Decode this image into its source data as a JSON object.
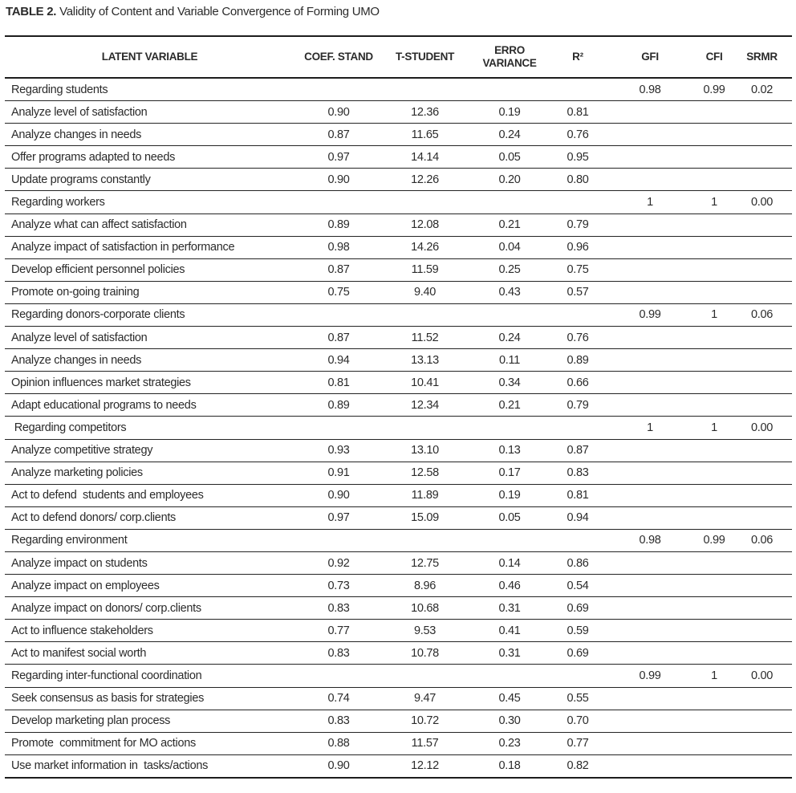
{
  "colors": {
    "text": "#2b2b2b",
    "rule": "#1d1d1d",
    "background": "#ffffff"
  },
  "title": {
    "label": "TABLE 2.",
    "text": "Validity of Content and Variable Convergence of Forming UMO"
  },
  "table": {
    "columns": [
      {
        "key": "label",
        "label": "LATENT VARIABLE"
      },
      {
        "key": "coef",
        "label": "COEF. STAND"
      },
      {
        "key": "t",
        "label": "T-STUDENT"
      },
      {
        "key": "erro",
        "label": "ERRO\nVARIANCE"
      },
      {
        "key": "r2",
        "label": "R²"
      },
      {
        "key": "gfi",
        "label": "GFI"
      },
      {
        "key": "cfi",
        "label": "CFI"
      },
      {
        "key": "srmr",
        "label": "SRMR"
      }
    ],
    "value_keys": [
      "coef",
      "t",
      "erro",
      "r2",
      "gfi",
      "cfi",
      "srmr"
    ],
    "rows": [
      {
        "type": "section",
        "label": "Regarding students",
        "gfi": "0.98",
        "cfi": "0.99",
        "srmr": "0.02"
      },
      {
        "type": "item",
        "label": "Analyze level of satisfaction",
        "coef": "0.90",
        "t": "12.36",
        "erro": "0.19",
        "r2": "0.81"
      },
      {
        "type": "item",
        "label": "Analyze changes in needs",
        "coef": "0.87",
        "t": "11.65",
        "erro": "0.24",
        "r2": "0.76"
      },
      {
        "type": "item",
        "label": "Offer programs adapted to needs",
        "coef": "0.97",
        "t": "14.14",
        "erro": "0.05",
        "r2": "0.95"
      },
      {
        "type": "item",
        "label": "Update programs constantly",
        "coef": "0.90",
        "t": "12.26",
        "erro": "0.20",
        "r2": "0.80"
      },
      {
        "type": "section",
        "label": "Regarding workers",
        "gfi": "1",
        "cfi": "1",
        "srmr": "0.00"
      },
      {
        "type": "item",
        "label": "Analyze what can affect satisfaction",
        "coef": "0.89",
        "t": "12.08",
        "erro": "0.21",
        "r2": "0.79"
      },
      {
        "type": "item",
        "label": "Analyze impact of satisfaction in performance",
        "coef": "0.98",
        "t": "14.26",
        "erro": "0.04",
        "r2": "0.96"
      },
      {
        "type": "item",
        "label": "Develop efficient personnel policies",
        "coef": "0.87",
        "t": "11.59",
        "erro": "0.25",
        "r2": "0.75"
      },
      {
        "type": "item",
        "label": "Promote on-going training",
        "coef": "0.75",
        "t": "9.40",
        "erro": "0.43",
        "r2": "0.57"
      },
      {
        "type": "section",
        "label": "Regarding donors-corporate clients",
        "gfi": "0.99",
        "cfi": "1",
        "srmr": "0.06"
      },
      {
        "type": "item",
        "label": "Analyze level of satisfaction",
        "coef": "0.87",
        "t": "11.52",
        "erro": "0.24",
        "r2": "0.76"
      },
      {
        "type": "item",
        "label": "Analyze changes in needs",
        "coef": "0.94",
        "t": "13.13",
        "erro": "0.11",
        "r2": "0.89"
      },
      {
        "type": "item",
        "label": "Opinion influences market strategies",
        "coef": "0.81",
        "t": "10.41",
        "erro": "0.34",
        "r2": "0.66"
      },
      {
        "type": "item",
        "label": "Adapt educational programs to needs",
        "coef": "0.89",
        "t": "12.34",
        "erro": "0.21",
        "r2": "0.79"
      },
      {
        "type": "section",
        "label": " Regarding competitors",
        "gfi": "1",
        "cfi": "1",
        "srmr": "0.00"
      },
      {
        "type": "item",
        "label": "Analyze competitive strategy",
        "coef": "0.93",
        "t": "13.10",
        "erro": "0.13",
        "r2": "0.87"
      },
      {
        "type": "item",
        "label": "Analyze marketing policies",
        "coef": "0.91",
        "t": "12.58",
        "erro": "0.17",
        "r2": "0.83"
      },
      {
        "type": "item",
        "label": "Act to defend  students and employees",
        "coef": "0.90",
        "t": "11.89",
        "erro": "0.19",
        "r2": "0.81"
      },
      {
        "type": "item",
        "label": "Act to defend donors/ corp.clients",
        "coef": "0.97",
        "t": "15.09",
        "erro": "0.05",
        "r2": "0.94"
      },
      {
        "type": "section",
        "label": "Regarding environment",
        "gfi": "0.98",
        "cfi": "0.99",
        "srmr": "0.06"
      },
      {
        "type": "item",
        "label": "Analyze impact on students",
        "coef": "0.92",
        "t": "12.75",
        "erro": "0.14",
        "r2": "0.86"
      },
      {
        "type": "item",
        "label": "Analyze impact on employees",
        "coef": "0.73",
        "t": "8.96",
        "erro": "0.46",
        "r2": "0.54"
      },
      {
        "type": "item",
        "label": "Analyze impact on donors/ corp.clients",
        "coef": "0.83",
        "t": "10.68",
        "erro": "0.31",
        "r2": "0.69"
      },
      {
        "type": "item",
        "label": "Act to influence stakeholders",
        "coef": "0.77",
        "t": "9.53",
        "erro": "0.41",
        "r2": "0.59"
      },
      {
        "type": "item",
        "label": "Act to manifest social worth",
        "coef": "0.83",
        "t": "10.78",
        "erro": "0.31",
        "r2": "0.69"
      },
      {
        "type": "section",
        "label": "Regarding inter-functional coordination",
        "gfi": "0.99",
        "cfi": "1",
        "srmr": "0.00"
      },
      {
        "type": "item",
        "label": "Seek consensus as basis for strategies",
        "coef": "0.74",
        "t": "9.47",
        "erro": "0.45",
        "r2": "0.55"
      },
      {
        "type": "item",
        "label": "Develop marketing plan process",
        "coef": "0.83",
        "t": "10.72",
        "erro": "0.30",
        "r2": "0.70"
      },
      {
        "type": "item",
        "label": "Promote  commitment for MO actions",
        "coef": "0.88",
        "t": "11.57",
        "erro": "0.23",
        "r2": "0.77"
      },
      {
        "type": "item",
        "label": "Use market information in  tasks/actions",
        "coef": "0.90",
        "t": "12.12",
        "erro": "0.18",
        "r2": "0.82"
      }
    ]
  }
}
